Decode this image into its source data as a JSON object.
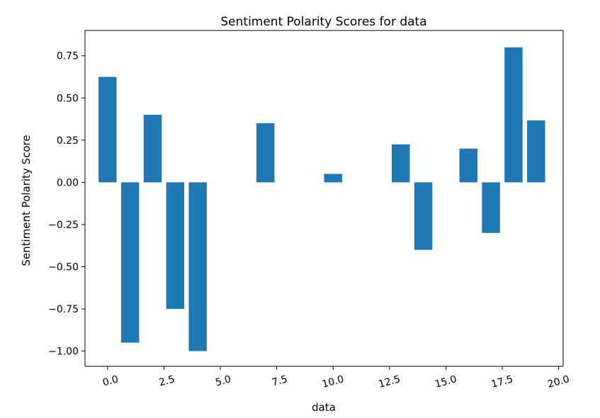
{
  "chart_data": {
    "type": "bar",
    "title": "Sentiment Polarity Scores for data",
    "xlabel": "data",
    "ylabel": "Sentiment Polarity Score",
    "x": [
      0,
      1,
      2,
      3,
      4,
      5,
      6,
      7,
      8,
      9,
      10,
      11,
      12,
      13,
      14,
      15,
      16,
      17,
      18,
      19
    ],
    "values": [
      0.625,
      -0.95,
      0.4,
      -0.75,
      -1.0,
      0,
      0,
      0.35,
      0,
      0,
      0.05,
      0,
      0,
      0.225,
      -0.4,
      0,
      0.2,
      -0.3,
      0.8,
      0.367
    ],
    "xlim": [
      -1,
      20.2
    ],
    "ylim": [
      -1.09,
      0.9
    ],
    "x_ticks": [
      0.0,
      2.5,
      5.0,
      7.5,
      10.0,
      12.5,
      15.0,
      17.5,
      20.0
    ],
    "x_tick_labels": [
      "0.0",
      "2.5",
      "5.0",
      "7.5",
      "10.0",
      "12.5",
      "15.0",
      "17.5",
      "20.0"
    ],
    "y_ticks": [
      0.75,
      0.5,
      0.25,
      0.0,
      -0.25,
      -0.5,
      -0.75,
      -1.0
    ],
    "y_tick_labels": [
      "0.75",
      "0.50",
      "0.25",
      "0.00",
      "−0.25",
      "−0.50",
      "−0.75",
      "−1.00"
    ],
    "bar_color": "#1f77b4",
    "grid": false,
    "legend": "none"
  }
}
